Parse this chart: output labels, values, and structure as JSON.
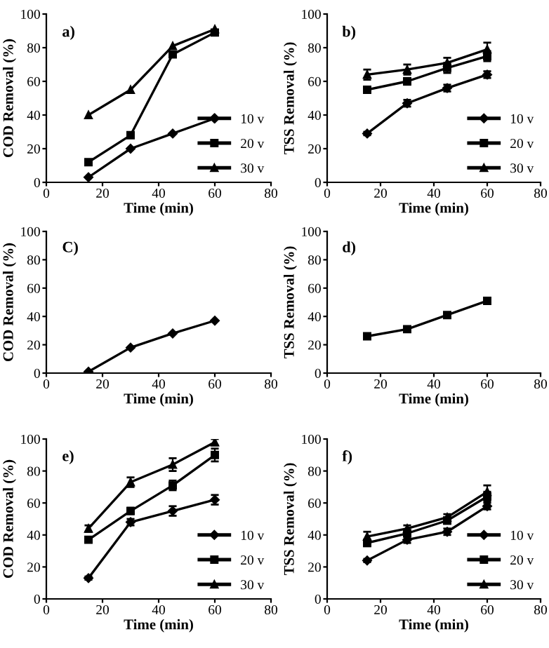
{
  "chart_data": [
    {
      "type": "line",
      "annotations": [
        "a)"
      ],
      "xlabel": "Time (min)",
      "ylabel": "COD Removal (%)",
      "x": [
        15,
        30,
        45,
        60
      ],
      "xlim": [
        0,
        80
      ],
      "xticks": [
        0,
        20,
        40,
        60,
        80
      ],
      "ylim": [
        0,
        100
      ],
      "yticks": [
        0,
        20,
        40,
        60,
        80,
        100
      ],
      "legend": "bottom right",
      "series": [
        {
          "name": "10 v",
          "color": "#000000",
          "marker": "diamond",
          "values": [
            3,
            20,
            29,
            38
          ]
        },
        {
          "name": "20 v",
          "color": "#000000",
          "marker": "square",
          "values": [
            12,
            28,
            76,
            89
          ]
        },
        {
          "name": "30 v",
          "color": "#000000",
          "marker": "triangle",
          "values": [
            40,
            55,
            81,
            91
          ]
        }
      ]
    },
    {
      "type": "line",
      "annotations": [
        "b)"
      ],
      "xlabel": "Time (min)",
      "ylabel": "TSS Removal (%)",
      "x": [
        15,
        30,
        45,
        60
      ],
      "xlim": [
        0,
        80
      ],
      "xticks": [
        0,
        20,
        40,
        60,
        80
      ],
      "ylim": [
        0,
        100
      ],
      "yticks": [
        0,
        20,
        40,
        60,
        80,
        100
      ],
      "legend": "bottom right",
      "series": [
        {
          "name": "10 v",
          "color": "#000000",
          "marker": "diamond",
          "values": [
            29,
            47,
            56,
            64
          ],
          "errors": [
            1,
            2,
            2,
            2
          ]
        },
        {
          "name": "20 v",
          "color": "#000000",
          "marker": "square",
          "values": [
            55,
            60,
            68,
            75
          ],
          "errors": [
            1,
            2,
            3,
            3
          ]
        },
        {
          "name": "30 v",
          "color": "#000000",
          "marker": "triangle",
          "values": [
            64,
            67,
            71,
            79
          ],
          "errors": [
            3,
            3,
            3,
            4
          ]
        }
      ]
    },
    {
      "type": "line",
      "annotations": [
        "C)"
      ],
      "xlabel": "Time (min)",
      "ylabel": "COD Removal (%)",
      "x": [
        15,
        30,
        45,
        60
      ],
      "xlim": [
        0,
        80
      ],
      "xticks": [
        0,
        20,
        40,
        60,
        80
      ],
      "ylim": [
        0,
        100
      ],
      "yticks": [
        0,
        20,
        40,
        60,
        80,
        100
      ],
      "series": [
        {
          "color": "#000000",
          "marker": "diamond",
          "values": [
            1,
            18,
            28,
            37
          ]
        }
      ]
    },
    {
      "type": "line",
      "annotations": [
        "d)"
      ],
      "xlabel": "Time (min)",
      "ylabel": "TSS Removal (%)",
      "x": [
        15,
        30,
        45,
        60
      ],
      "xlim": [
        0,
        80
      ],
      "xticks": [
        0,
        20,
        40,
        60,
        80
      ],
      "ylim": [
        0,
        100
      ],
      "yticks": [
        0,
        20,
        40,
        60,
        80,
        100
      ],
      "series": [
        {
          "color": "#000000",
          "marker": "square",
          "values": [
            26,
            31,
            41,
            51
          ]
        }
      ]
    },
    {
      "type": "line",
      "annotations": [
        "e)"
      ],
      "xlabel": "Time (min)",
      "ylabel": "COD Removal (%)",
      "x": [
        15,
        30,
        45,
        60
      ],
      "xlim": [
        0,
        80
      ],
      "xticks": [
        0,
        20,
        40,
        60,
        80
      ],
      "ylim": [
        0,
        100
      ],
      "yticks": [
        0,
        20,
        40,
        60,
        80,
        100
      ],
      "legend": "bottom right",
      "series": [
        {
          "name": "10 v",
          "color": "#000000",
          "marker": "diamond",
          "values": [
            13,
            48,
            55,
            62
          ],
          "errors": [
            1,
            2,
            3,
            3
          ]
        },
        {
          "name": "20 v",
          "color": "#000000",
          "marker": "square",
          "values": [
            37,
            55,
            71,
            90
          ],
          "errors": [
            1,
            2,
            3,
            4
          ]
        },
        {
          "name": "30 v",
          "color": "#000000",
          "marker": "triangle",
          "values": [
            44,
            73,
            84,
            98
          ],
          "errors": [
            2,
            3,
            4,
            2
          ]
        }
      ]
    },
    {
      "type": "line",
      "annotations": [
        "f)"
      ],
      "xlabel": "Time (min)",
      "ylabel": "TSS Removal (%)",
      "x": [
        15,
        30,
        45,
        60
      ],
      "xlim": [
        0,
        80
      ],
      "xticks": [
        0,
        20,
        40,
        60,
        80
      ],
      "ylim": [
        0,
        100
      ],
      "yticks": [
        0,
        20,
        40,
        60,
        80,
        100
      ],
      "legend": "bottom right",
      "series": [
        {
          "name": "10 v",
          "color": "#000000",
          "marker": "diamond",
          "values": [
            24,
            37,
            42,
            58
          ],
          "errors": [
            1,
            2,
            2,
            2
          ]
        },
        {
          "name": "20 v",
          "color": "#000000",
          "marker": "square",
          "values": [
            35,
            41,
            49,
            64
          ],
          "errors": [
            2,
            2,
            2,
            3
          ]
        },
        {
          "name": "30 v",
          "color": "#000000",
          "marker": "triangle",
          "values": [
            39,
            44,
            51,
            67
          ],
          "errors": [
            3,
            2,
            2,
            4
          ]
        }
      ]
    }
  ]
}
